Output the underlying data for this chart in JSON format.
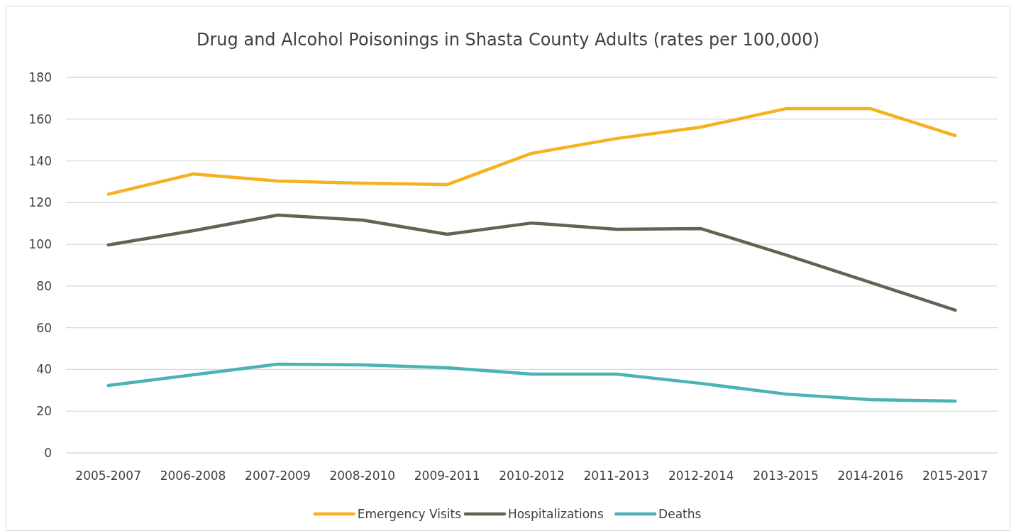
{
  "chart_data": {
    "type": "line",
    "title": "Drug and Alcohol Poisonings in Shasta County Adults (rates per 100,000)",
    "categories": [
      "2005-2007",
      "2006-2008",
      "2007-2009",
      "2008-2010",
      "2009-2011",
      "2010-2012",
      "2011-2013",
      "2012-2014",
      "2013-2015",
      "2014-2016",
      "2015-2017"
    ],
    "series": [
      {
        "name": "Emergency Visits",
        "color": "#f5b120",
        "values": [
          124,
          133.7,
          130.3,
          129.3,
          128.6,
          143.6,
          150.7,
          156.2,
          165,
          165,
          152.1
        ]
      },
      {
        "name": "Hospitalizations",
        "color": "#5f6552",
        "values": [
          99.7,
          106.5,
          114,
          111.6,
          104.8,
          110.2,
          107.2,
          107.5,
          94.9,
          81.7,
          68.4
        ]
      },
      {
        "name": "Deaths",
        "color": "#4bb3b5",
        "values": [
          32.3,
          37.4,
          42.5,
          42.2,
          40.8,
          37.8,
          37.8,
          33.3,
          28.2,
          25.5,
          24.8
        ]
      }
    ],
    "ylim": [
      0,
      180
    ],
    "yticks": [
      0,
      20,
      40,
      60,
      80,
      100,
      120,
      140,
      160,
      180
    ],
    "grid": "y",
    "legend": "bottom",
    "marker": "none",
    "line_style": "solid"
  }
}
